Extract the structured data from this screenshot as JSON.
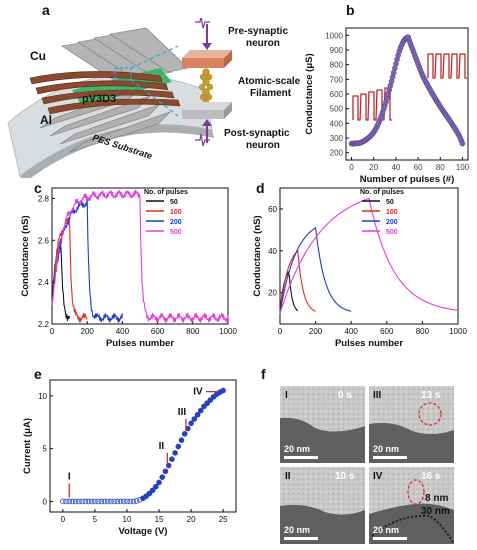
{
  "figure": {
    "labels": {
      "a": "a",
      "b": "b",
      "c": "c",
      "d": "d",
      "e": "e",
      "f": "f"
    }
  },
  "panel_a": {
    "electrode_top": "Cu",
    "active_layer": "pV3D3",
    "electrode_bottom": "Al",
    "substrate": "PES Substrate",
    "pre": "Pre-synaptic\nneuron",
    "filament": "Atomic-scale\nFilament",
    "post": "Post-synaptic\nneuron",
    "colors": {
      "copper": "#8a4a2f",
      "layer": "#27b25a",
      "wire": "#a8a8a8",
      "cyan": "#29a9d6",
      "purple": "#7d3c98",
      "gold": "#c79a2a"
    }
  },
  "chart_b": {
    "type": "scatter",
    "xlabel": "Number of pulses (#)",
    "ylabel": "Conductance (μS)",
    "xlim": [
      -5,
      105
    ],
    "ylim": [
      150,
      1050
    ],
    "xticks": [
      0,
      20,
      40,
      60,
      80,
      100
    ],
    "yticks": [
      200,
      300,
      400,
      500,
      600,
      700,
      800,
      900,
      1000
    ],
    "marker_color": "#7d63b8",
    "pulse_color": "#c0292a",
    "potentiation": {
      "x": [
        0,
        1,
        2,
        3,
        4,
        5,
        6,
        7,
        8,
        9,
        10,
        11,
        12,
        13,
        14,
        15,
        16,
        17,
        18,
        19,
        20,
        21,
        22,
        23,
        24,
        25,
        26,
        27,
        28,
        29,
        30,
        31,
        32,
        33,
        34,
        35,
        36,
        37,
        38,
        39,
        40,
        41,
        42,
        43,
        44,
        45,
        46,
        47,
        48,
        49,
        50,
        51
      ],
      "y": [
        262,
        260,
        262,
        264,
        262,
        265,
        264,
        266,
        268,
        270,
        275,
        278,
        283,
        288,
        294,
        300,
        306,
        313,
        321,
        330,
        340,
        352,
        365,
        380,
        396,
        413,
        432,
        452,
        474,
        497,
        520,
        545,
        572,
        600,
        628,
        657,
        686,
        716,
        745,
        775,
        805,
        835,
        864,
        890,
        912,
        930,
        948,
        962,
        972,
        980,
        984,
        988
      ]
    },
    "depression": {
      "x": [
        52,
        53,
        54,
        55,
        56,
        57,
        58,
        59,
        60,
        61,
        62,
        63,
        64,
        65,
        66,
        67,
        68,
        69,
        70,
        71,
        72,
        73,
        74,
        75,
        76,
        77,
        78,
        79,
        80,
        81,
        82,
        83,
        84,
        85,
        86,
        87,
        88,
        89,
        90,
        91,
        92,
        93,
        94,
        95,
        96,
        97,
        98,
        99,
        100
      ],
      "y": [
        965,
        945,
        925,
        905,
        885,
        865,
        845,
        825,
        805,
        785,
        765,
        745,
        728,
        712,
        697,
        682,
        668,
        654,
        640,
        627,
        614,
        601,
        588,
        575,
        562,
        550,
        538,
        526,
        514,
        502,
        491,
        480,
        470,
        458,
        448,
        436,
        425,
        414,
        402,
        390,
        378,
        368,
        355,
        343,
        330,
        316,
        300,
        282,
        262
      ]
    }
  },
  "chart_c": {
    "type": "line",
    "xlabel": "Pulses number",
    "ylabel": "Conductance (nS)",
    "xlim": [
      0,
      1000
    ],
    "ylim": [
      2.2,
      2.85
    ],
    "xticks": [
      0,
      200,
      400,
      600,
      800,
      1000
    ],
    "yticks": [
      2.2,
      2.4,
      2.6,
      2.8
    ],
    "legend_title": "No. of pulses",
    "series": [
      {
        "name": "50",
        "color": "#111111",
        "n": 50
      },
      {
        "name": "100",
        "color": "#e52828",
        "n": 100
      },
      {
        "name": "200",
        "color": "#1f3cc9",
        "n": 200
      },
      {
        "name": "500",
        "color": "#e23ce2",
        "n": 500
      }
    ]
  },
  "chart_d": {
    "type": "line",
    "xlabel": "Pulses number",
    "ylabel": "Conductance (nS)",
    "xlim": [
      0,
      1000
    ],
    "ylim": [
      5,
      70
    ],
    "xticks": [
      0,
      200,
      400,
      600,
      800,
      1000
    ],
    "yticks": [
      20,
      40,
      60
    ],
    "legend_title": "No. of pulses",
    "series": [
      {
        "name": "50",
        "color": "#111111",
        "n": 50
      },
      {
        "name": "100",
        "color": "#e52828",
        "n": 100
      },
      {
        "name": "200",
        "color": "#1f3cc9",
        "n": 200
      },
      {
        "name": "500",
        "color": "#e23ce2",
        "n": 500
      }
    ]
  },
  "chart_e": {
    "type": "scatter",
    "xlabel": "Voltage (V)",
    "ylabel": "Current (μA)",
    "xlim": [
      -2,
      27
    ],
    "ylim": [
      -1,
      11.5
    ],
    "xticks": [
      0,
      5,
      10,
      15,
      20,
      25
    ],
    "yticks": [
      0,
      5,
      10
    ],
    "marker_color": "#2141c8",
    "annot_color": "#d12a2a",
    "x": [
      0,
      0.5,
      1,
      1.5,
      2,
      2.5,
      3,
      3.5,
      4,
      4.5,
      5,
      5.5,
      6,
      6.5,
      7,
      7.5,
      8,
      8.5,
      9,
      9.5,
      10,
      10.5,
      11,
      11.5,
      12,
      12.5,
      13,
      13.5,
      14,
      14.5,
      15,
      15.5,
      16,
      16.5,
      17,
      17.5,
      18,
      18.5,
      19,
      19.5,
      20,
      20.5,
      21,
      21.5,
      22,
      22.5,
      23,
      23.5,
      24,
      24.5,
      25
    ],
    "y": [
      0,
      0,
      0,
      0,
      0,
      0,
      0,
      0,
      0,
      0,
      0,
      0,
      0,
      0,
      0,
      0,
      0,
      0,
      0,
      0,
      0,
      0,
      0,
      0.05,
      0.15,
      0.3,
      0.5,
      0.75,
      1.05,
      1.4,
      1.8,
      2.3,
      2.85,
      3.4,
      4,
      4.6,
      5.2,
      5.8,
      6.4,
      6.9,
      7.4,
      7.8,
      8.2,
      8.6,
      9.0,
      9.3,
      9.6,
      9.9,
      10.15,
      10.35,
      10.5
    ],
    "annotations": [
      {
        "label": "I",
        "x": 1,
        "y": 0
      },
      {
        "label": "II",
        "x": 16.3,
        "y": 2.9
      },
      {
        "label": "III",
        "x": 19.2,
        "y": 6.3
      },
      {
        "label": "IV",
        "x": 24.5,
        "y": 10.4
      }
    ]
  },
  "panel_f": {
    "frames": [
      {
        "roman": "I",
        "time": "0 s",
        "scale": "20 nm"
      },
      {
        "roman": "III",
        "time": "13 s",
        "scale": "20 nm"
      },
      {
        "roman": "II",
        "time": "10 s",
        "scale": "20 nm"
      },
      {
        "roman": "IV",
        "time": "16 s",
        "scale": "20 nm"
      }
    ],
    "measure1": "8 nm",
    "measure2": "30 nm"
  }
}
